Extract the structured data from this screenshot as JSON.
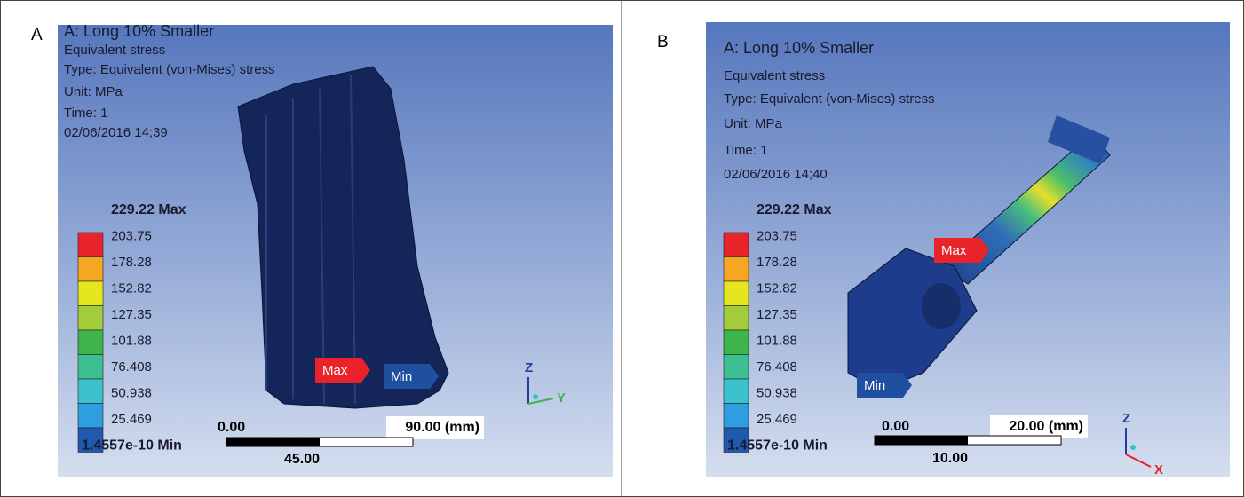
{
  "panels": [
    {
      "label": "A",
      "title": "A: Long 10% Smaller",
      "lines": [
        "Equivalent stress",
        "Type: Equivalent (von-Mises) stress",
        "Unit: MPa",
        "Time: 1",
        "02/06/2016 14;39"
      ],
      "legend": [
        "229.22 Max",
        "203.75",
        "178.28",
        "152.82",
        "127.35",
        "101.88",
        "76.408",
        "50.938",
        "25.469",
        "1.4557e-10 Min"
      ],
      "markers": [
        "Max",
        "Min"
      ],
      "scale": {
        "start": "0.00",
        "end": "90.00 (mm)",
        "middle": "45.00"
      },
      "axes": [
        "Z",
        "Y"
      ]
    },
    {
      "label": "B",
      "title": "A: Long 10% Smaller",
      "lines": [
        "Equivalent stress",
        "Type: Equivalent (von-Mises) stress",
        "Unit: MPa",
        "Time: 1",
        "02/06/2016 14;40"
      ],
      "legend": [
        "229.22 Max",
        "203.75",
        "178.28",
        "152.82",
        "127.35",
        "101.88",
        "76.408",
        "50.938",
        "25.469",
        "1.4557e-10 Min"
      ],
      "markers": [
        "Max",
        "Min"
      ],
      "scale": {
        "start": "0.00",
        "end": "20.00 (mm)",
        "middle": "10.00"
      },
      "axes": [
        "Z",
        "X"
      ]
    }
  ]
}
